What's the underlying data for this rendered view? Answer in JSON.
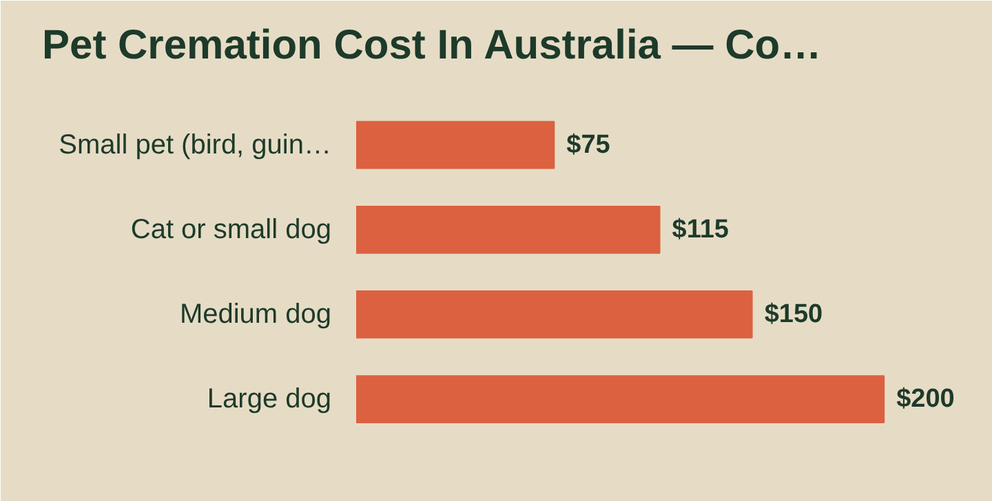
{
  "chart_data": {
    "type": "bar",
    "orientation": "horizontal",
    "title": "Pet Cremation Cost In Australia — Co…",
    "categories": [
      "Small pet (bird, guin…",
      "Cat or small dog",
      "Medium dog",
      "Large dog"
    ],
    "values": [
      75,
      115,
      150,
      200
    ],
    "value_labels": [
      "$75",
      "$115",
      "$150",
      "$200"
    ],
    "color": "#dc6140",
    "grid": false,
    "tick_labels": "y"
  }
}
